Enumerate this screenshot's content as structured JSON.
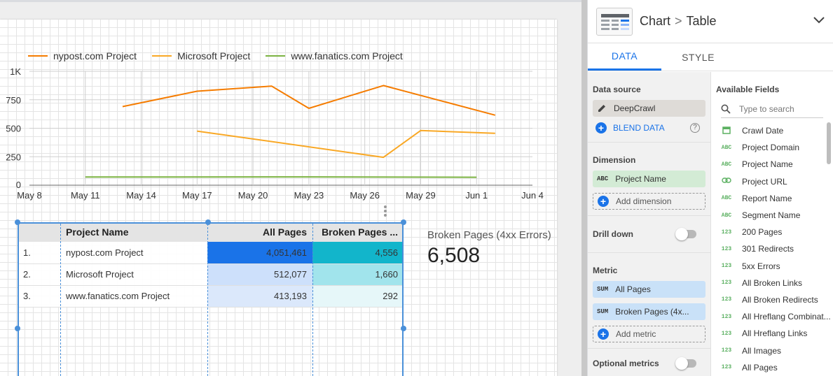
{
  "chart_data": {
    "type": "line",
    "x": [
      "May 8",
      "May 11",
      "May 14",
      "May 17",
      "May 20",
      "May 23",
      "May 26",
      "May 29",
      "Jun 1",
      "Jun 4"
    ],
    "ylim": [
      0,
      1000
    ],
    "yticks": [
      "0",
      "250",
      "500",
      "750",
      "1K"
    ],
    "series": [
      {
        "name": "nypost.com Project",
        "color": "#f57c00",
        "points": [
          [
            "May 13",
            690
          ],
          [
            "May 17",
            825
          ],
          [
            "May 21",
            870
          ],
          [
            "May 23",
            675
          ],
          [
            "May 27",
            875
          ],
          [
            "Jun 2",
            615
          ]
        ]
      },
      {
        "name": "Microsoft Project",
        "color": "#f9a825",
        "points": [
          [
            "May 17",
            475
          ],
          [
            "May 27",
            245
          ],
          [
            "May 29",
            480
          ],
          [
            "Jun 2",
            455
          ]
        ]
      },
      {
        "name": "www.fanatics.com Project",
        "color": "#7cb342",
        "points": [
          [
            "May 11",
            72
          ],
          [
            "May 23",
            73
          ],
          [
            "Jun 1",
            70
          ]
        ]
      }
    ],
    "grid": true,
    "legend": "top-left"
  },
  "table": {
    "headers": [
      "",
      "Project Name",
      "All Pages",
      "Broken Pages ..."
    ],
    "rows": [
      {
        "idx": "1.",
        "name": "nypost.com Project",
        "all": "4,051,461",
        "broken": "4,556"
      },
      {
        "idx": "2.",
        "name": "Microsoft Project",
        "all": "512,077",
        "broken": "1,660"
      },
      {
        "idx": "3.",
        "name": "www.fanatics.com Project",
        "all": "413,193",
        "broken": "292"
      }
    ],
    "heat_all": [
      "#1a73e8",
      "#cde0fb",
      "#dbe8fb"
    ],
    "heat_broken": [
      "#12b5cb",
      "#a1e4ec",
      "#e6f7f9"
    ]
  },
  "scorecard": {
    "label": "Broken Pages (4xx Errors)",
    "value": "6,508"
  },
  "panel": {
    "breadcrumb_chart": "Chart",
    "breadcrumb_sep": ">",
    "breadcrumb_type": "Table",
    "tab_data": "DATA",
    "tab_style": "STYLE",
    "data_source_title": "Data source",
    "data_source": "DeepCrawl",
    "blend": "BLEND DATA",
    "dimension_title": "Dimension",
    "dimension_tag": "ABC",
    "dimension": "Project Name",
    "add_dimension": "Add dimension",
    "drill_down": "Drill down",
    "metric_title": "Metric",
    "metrics": [
      {
        "tag": "SUM",
        "label": "All Pages"
      },
      {
        "tag": "SUM",
        "label": "Broken Pages (4x..."
      }
    ],
    "add_metric": "Add metric",
    "optional_metrics": "Optional metrics",
    "available_title": "Available Fields",
    "search_placeholder": "Type to search",
    "fields": [
      {
        "type": "date",
        "label": "Crawl Date"
      },
      {
        "type": "ABC",
        "label": "Project Domain"
      },
      {
        "type": "ABC",
        "label": "Project Name"
      },
      {
        "type": "link",
        "label": "Project URL"
      },
      {
        "type": "ABC",
        "label": "Report Name"
      },
      {
        "type": "ABC",
        "label": "Segment Name"
      },
      {
        "type": "123",
        "label": "200 Pages"
      },
      {
        "type": "123",
        "label": "301 Redirects"
      },
      {
        "type": "123",
        "label": "5xx Errors"
      },
      {
        "type": "123",
        "label": "All Broken Links"
      },
      {
        "type": "123",
        "label": "All Broken Redirects"
      },
      {
        "type": "123",
        "label": "All Hreflang Combinat..."
      },
      {
        "type": "123",
        "label": "All Hreflang Links"
      },
      {
        "type": "123",
        "label": "All Images"
      },
      {
        "type": "123",
        "label": "All Pages"
      }
    ]
  }
}
